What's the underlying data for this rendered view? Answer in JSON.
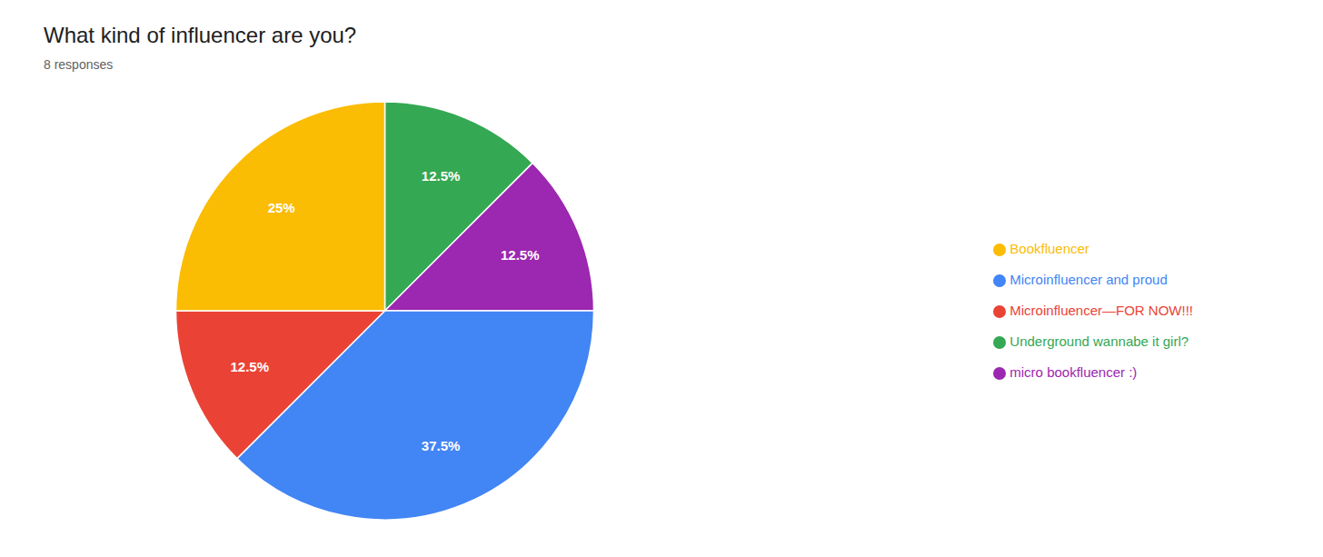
{
  "chart_data": {
    "type": "pie",
    "title": "What kind of influencer are you?",
    "subtitle": "8 responses",
    "categories": [
      "Underground wannabe it girl?",
      "micro bookfluencer :)",
      "Microinfluencer and proud",
      "Microinfluencer—FOR NOW!!!",
      "Bookfluencer"
    ],
    "values": [
      12.5,
      12.5,
      37.5,
      12.5,
      25.0
    ],
    "value_labels": [
      "12.5%",
      "12.5%",
      "37.5%",
      "12.5%",
      "25%"
    ],
    "colors": [
      "#34A853",
      "#9C27B0",
      "#4285F4",
      "#EA4335",
      "#FBBC04"
    ],
    "data_labels": true,
    "legend": "right"
  }
}
